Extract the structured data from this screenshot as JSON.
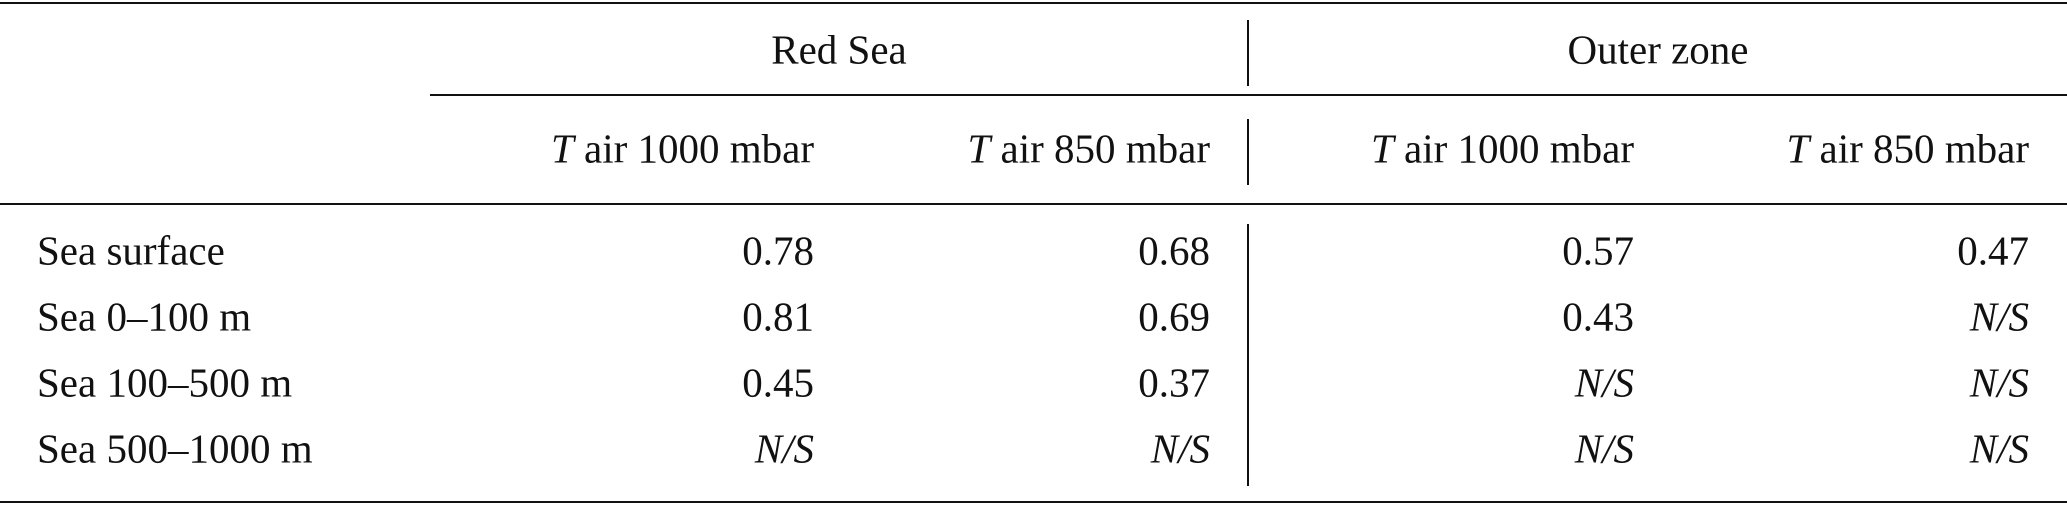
{
  "table": {
    "groups": [
      "Red Sea",
      "Outer zone"
    ],
    "columns": [
      "T air 1000 mbar",
      "T air 850 mbar",
      "T air 1000 mbar",
      "T air 850 mbar"
    ],
    "rows": [
      {
        "label": "Sea surface",
        "cells": [
          0.78,
          0.68,
          0.57,
          0.47
        ]
      },
      {
        "label": "Sea 0–100 m",
        "cells": [
          0.81,
          0.69,
          0.43,
          "N/S"
        ]
      },
      {
        "label": "Sea 100–500 m",
        "cells": [
          0.45,
          0.37,
          "N/S",
          "N/S"
        ]
      },
      {
        "label": "Sea 500–1000 m",
        "cells": [
          "N/S",
          "N/S",
          "N/S",
          "N/S"
        ]
      }
    ]
  }
}
